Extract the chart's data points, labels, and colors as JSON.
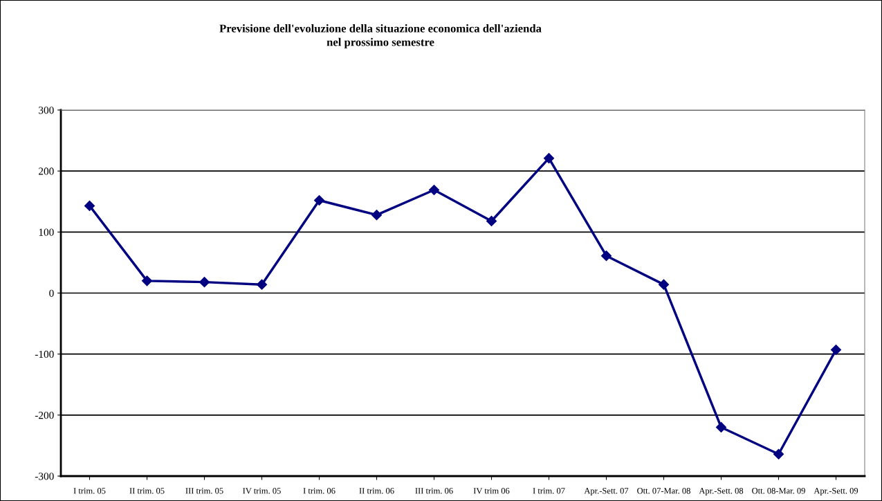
{
  "chart_data": {
    "type": "line",
    "title": "Previsione dell'evoluzione della situazione economica dell'azienda\nnel prossimo semestre",
    "categories": [
      "I trim. 05",
      "II trim. 05",
      "III trim. 05",
      "IV trim. 05",
      "I trim. 06",
      "II trim. 06",
      "III trim. 06",
      "IV trim 06",
      "I trim. 07",
      "Apr.-Sett. 07",
      "Ott. 07-Mar. 08",
      "Apr.-Sett. 08",
      "Ott. 08-Mar. 09",
      "Apr.-Sett. 09"
    ],
    "series": [
      {
        "color": "#000080",
        "values": [
          143,
          20,
          18,
          14,
          152,
          128,
          169,
          118,
          221,
          61,
          14,
          -220,
          -264,
          -93
        ]
      }
    ],
    "ylim": [
      -300,
      300
    ],
    "yticks": [
      -300,
      -200,
      -100,
      0,
      100,
      200,
      300
    ],
    "grid": "y",
    "marker": "diamond",
    "line_style": "solid",
    "legend": false
  }
}
